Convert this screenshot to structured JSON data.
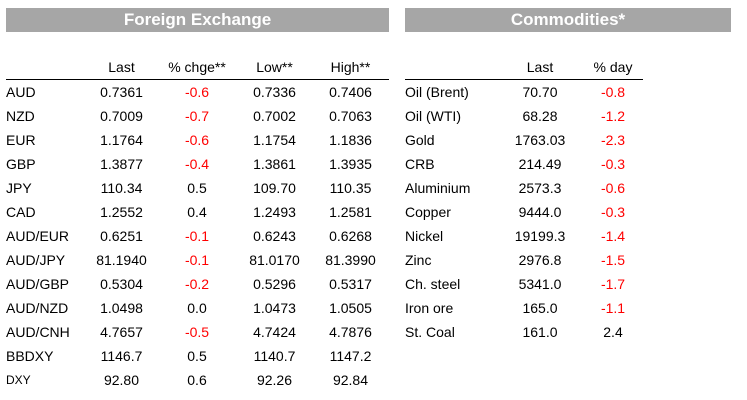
{
  "fx": {
    "title": "Foreign Exchange",
    "columns": [
      "",
      "Last",
      "% chge**",
      "Low**",
      "High**"
    ],
    "rows": [
      {
        "name": "AUD",
        "last": "0.7361",
        "chg": "-0.6",
        "low": "0.7336",
        "high": "0.7406"
      },
      {
        "name": "NZD",
        "last": "0.7009",
        "chg": "-0.7",
        "low": "0.7002",
        "high": "0.7063"
      },
      {
        "name": "EUR",
        "last": "1.1764",
        "chg": "-0.6",
        "low": "1.1754",
        "high": "1.1836"
      },
      {
        "name": "GBP",
        "last": "1.3877",
        "chg": "-0.4",
        "low": "1.3861",
        "high": "1.3935"
      },
      {
        "name": "JPY",
        "last": "110.34",
        "chg": "0.5",
        "low": "109.70",
        "high": "110.35"
      },
      {
        "name": "CAD",
        "last": "1.2552",
        "chg": "0.4",
        "low": "1.2493",
        "high": "1.2581"
      },
      {
        "name": "AUD/EUR",
        "last": "0.6251",
        "chg": "-0.1",
        "low": "0.6243",
        "high": "0.6268"
      },
      {
        "name": "AUD/JPY",
        "last": "81.1940",
        "chg": "-0.1",
        "low": "81.0170",
        "high": "81.3990"
      },
      {
        "name": "AUD/GBP",
        "last": "0.5304",
        "chg": "-0.2",
        "low": "0.5296",
        "high": "0.5317"
      },
      {
        "name": "AUD/NZD",
        "last": "1.0498",
        "chg": "0.0",
        "low": "1.0473",
        "high": "1.0505"
      },
      {
        "name": "AUD/CNH",
        "last": "4.7657",
        "chg": "-0.5",
        "low": "4.7424",
        "high": "4.7876"
      },
      {
        "name": "BBDXY",
        "last": "1146.7",
        "chg": "0.5",
        "low": "1140.7",
        "high": "1147.2"
      },
      {
        "name": "DXY",
        "last": "92.80",
        "chg": "0.6",
        "low": "92.26",
        "high": "92.84"
      }
    ]
  },
  "commodities": {
    "title": "Commodities*",
    "columns": [
      "",
      "Last",
      "% day"
    ],
    "rows": [
      {
        "name": "Oil (Brent)",
        "last": "70.70",
        "chg": "-0.8"
      },
      {
        "name": "Oil (WTI)",
        "last": "68.28",
        "chg": "-1.2"
      },
      {
        "name": "Gold",
        "last": "1763.03",
        "chg": "-2.3"
      },
      {
        "name": "CRB",
        "last": "214.49",
        "chg": "-0.3"
      },
      {
        "name": "Aluminium",
        "last": "2573.3",
        "chg": "-0.6"
      },
      {
        "name": "Copper",
        "last": "9444.0",
        "chg": "-0.3"
      },
      {
        "name": "Nickel",
        "last": "19199.3",
        "chg": "-1.4"
      },
      {
        "name": "Zinc",
        "last": "2976.8",
        "chg": "-1.5"
      },
      {
        "name": "Ch. steel",
        "last": "5341.0",
        "chg": "-1.7"
      },
      {
        "name": "Iron ore",
        "last": "165.0",
        "chg": "-1.1"
      },
      {
        "name": "St. Coal",
        "last": "161.0",
        "chg": "2.4"
      }
    ]
  },
  "colors": {
    "banner": "#a6a6a6",
    "negative": "#ff0000",
    "positive": "#000000"
  }
}
